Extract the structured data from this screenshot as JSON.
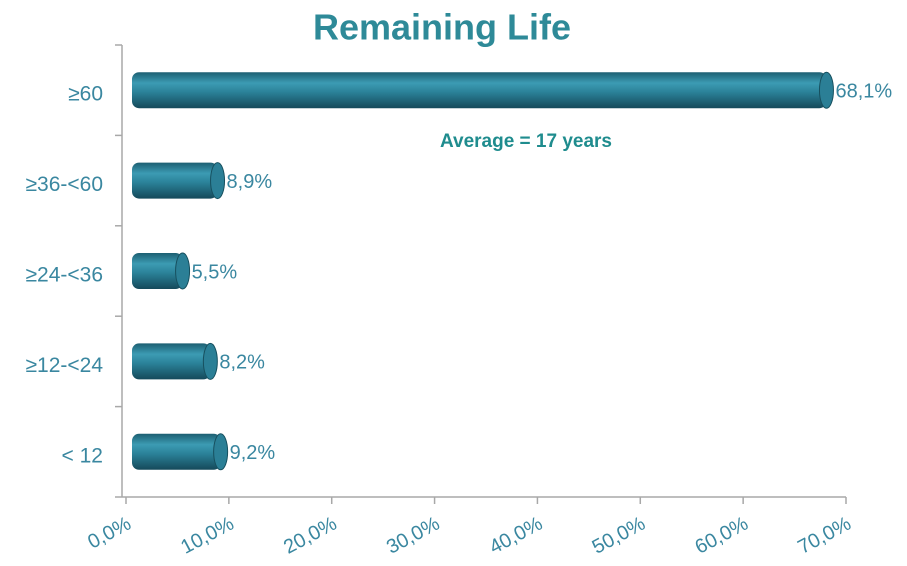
{
  "chart_data": {
    "type": "bar",
    "orientation": "horizontal",
    "title": "Remaining Life",
    "annotation": "Average = 17 years",
    "categories": [
      "≥60",
      "≥36-<60",
      "≥24-<36",
      "≥12-<24",
      "< 12"
    ],
    "values": [
      68.1,
      8.9,
      5.5,
      8.2,
      9.2
    ],
    "value_labels": [
      "68,1%",
      "8,9%",
      "5,5%",
      "8,2%",
      "9,2%"
    ],
    "color": "#2b7f96",
    "xlim": [
      0,
      70
    ],
    "xticks": [
      {
        "value": 0,
        "label": "0,0%"
      },
      {
        "value": 10,
        "label": "10,0%"
      },
      {
        "value": 20,
        "label": "20,0%"
      },
      {
        "value": 30,
        "label": "30,0%"
      },
      {
        "value": 40,
        "label": "40,0%"
      },
      {
        "value": 50,
        "label": "50,0%"
      },
      {
        "value": 60,
        "label": "60,0%"
      },
      {
        "value": 70,
        "label": "70,0%"
      }
    ],
    "grid": false
  }
}
